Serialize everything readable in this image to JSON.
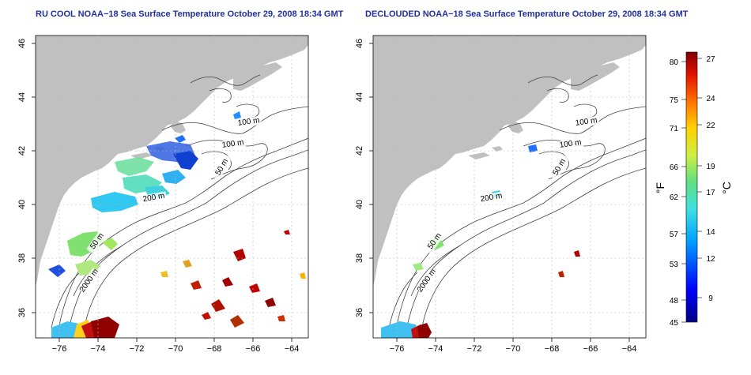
{
  "panels": [
    {
      "title": "RU COOL NOAA−18 Sea Surface Temperature October 29, 2008 18:34 GMT"
    },
    {
      "title": "DECLOUDED NOAA−18 Sea Surface Temperature October 29, 2008 18:34 GMT"
    }
  ],
  "axes": {
    "lon_ticks": [
      "−76",
      "−74",
      "−72",
      "−70",
      "−68",
      "−66",
      "−64"
    ],
    "lat_ticks": [
      "36",
      "38",
      "40",
      "42",
      "44",
      "46"
    ]
  },
  "contours": {
    "labels_left": [
      "100 m",
      "100 m",
      "50 m",
      "200 m",
      "50 m",
      "2000 m"
    ],
    "labels_right": [
      "100 m",
      "100 m",
      "50 m",
      "200 m",
      "50 m",
      "2000 m"
    ]
  },
  "colorbar": {
    "unit_f": "°F",
    "unit_c": "°C",
    "f_ticks": [
      "80",
      "75",
      "71",
      "66",
      "62",
      "57",
      "53",
      "48",
      "45"
    ],
    "c_ticks": [
      "27",
      "24",
      "22",
      "19",
      "17",
      "14",
      "12",
      "9"
    ]
  },
  "colors": {
    "land": "#c0c0c0",
    "title": "#1f2fa0",
    "grid": "#b8b8b8",
    "contour": "#444444"
  }
}
